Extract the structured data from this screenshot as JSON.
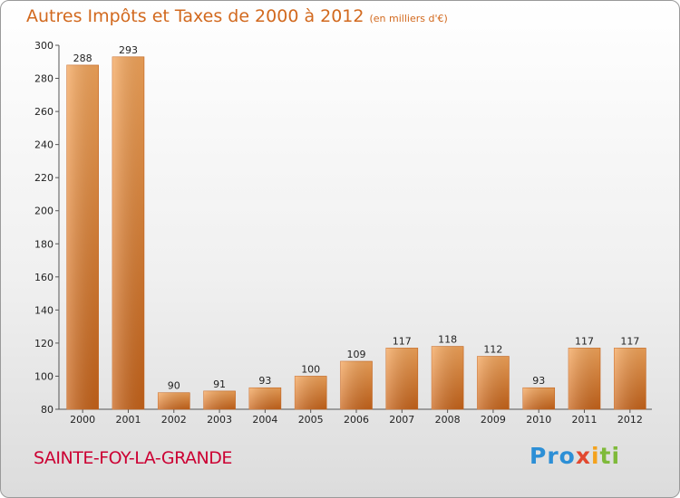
{
  "header": {
    "title": "Autres Impôts et Taxes de 2000 à 2012",
    "unit": "(en milliers d'€)"
  },
  "footer": {
    "commune": "SAINTE-FOY-LA-GRANDE"
  },
  "logo": {
    "text": "Proxiti",
    "parts": [
      "Pro",
      "x",
      "i",
      "ti"
    ]
  },
  "colors": {
    "bar_light": "#f5a65b",
    "bar_dark": "#c8641a",
    "title": "#d2691e",
    "commune": "#cc0033"
  },
  "chart_data": {
    "type": "bar",
    "title": "Autres Impôts et Taxes de 2000 à 2012",
    "subtitle": "(en milliers d'€)",
    "categories": [
      "2000",
      "2001",
      "2002",
      "2003",
      "2004",
      "2005",
      "2006",
      "2007",
      "2008",
      "2009",
      "2010",
      "2011",
      "2012"
    ],
    "values": [
      288,
      293,
      90,
      91,
      93,
      100,
      109,
      117,
      118,
      112,
      93,
      117,
      117
    ],
    "ylim": [
      80,
      300
    ],
    "yticks": [
      80,
      100,
      120,
      140,
      160,
      180,
      200,
      220,
      240,
      260,
      280,
      300
    ],
    "grid": false,
    "legend": "none"
  }
}
